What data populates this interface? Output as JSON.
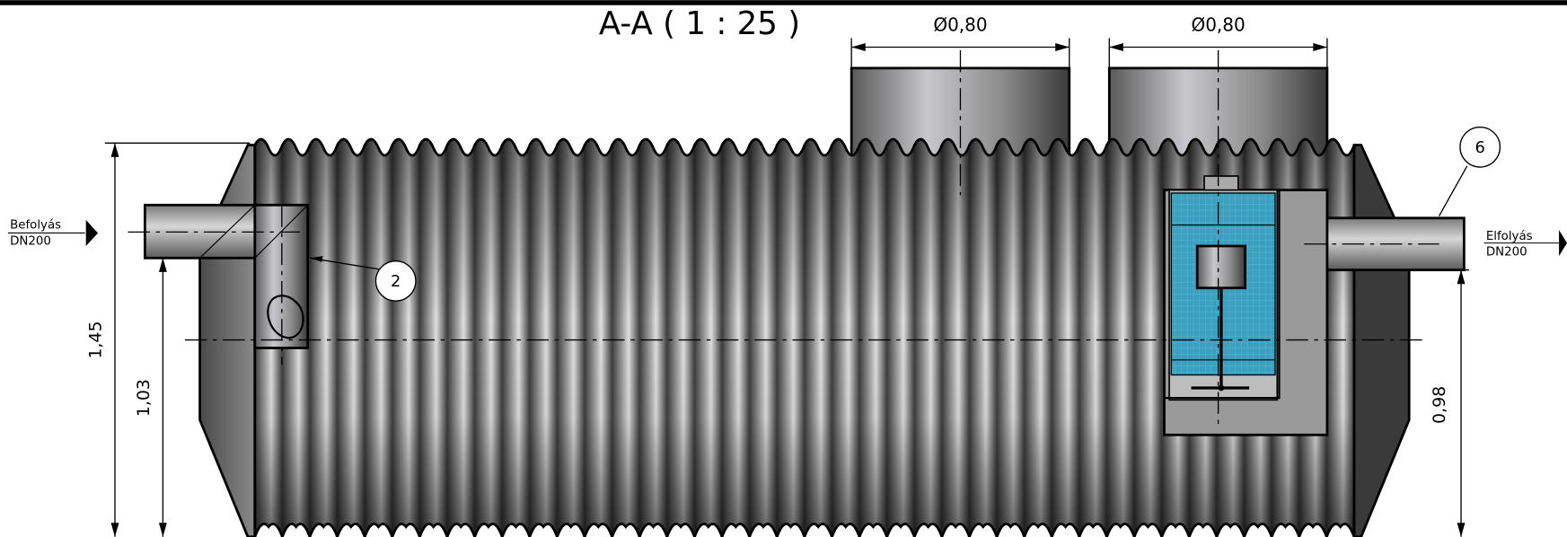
{
  "title": "A-A ( 1 : 25 )",
  "manholes": [
    {
      "diameter": "Ø0,80"
    },
    {
      "diameter": "Ø0,80"
    }
  ],
  "inlet": {
    "label": "Befolyás",
    "size": "DN200"
  },
  "outlet": {
    "label": "Elfolyás",
    "size": "DN200"
  },
  "dimensions": {
    "total_height": "1,45",
    "inlet_height": "1,03",
    "outlet_height": "0,98"
  },
  "callouts": [
    "2",
    "6"
  ]
}
